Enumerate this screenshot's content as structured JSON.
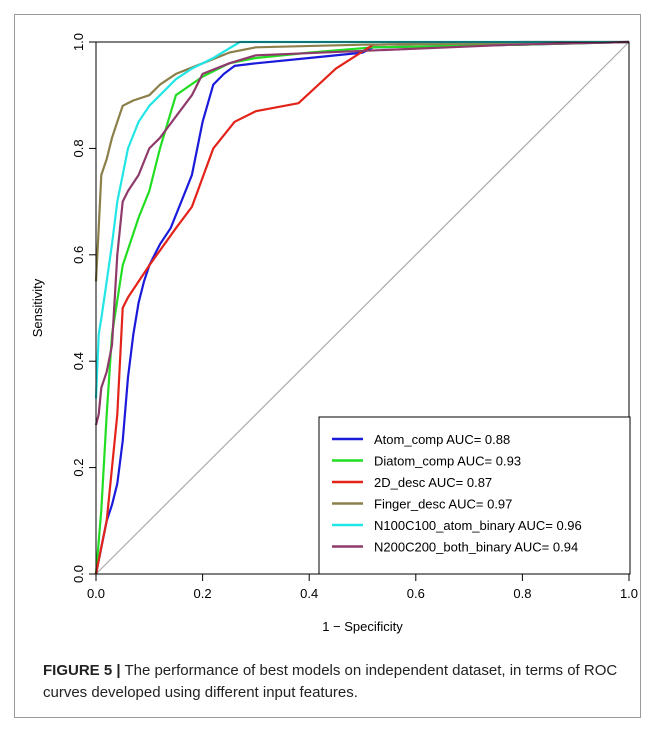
{
  "chart_data": {
    "type": "line",
    "xlabel": "1 − Specificity",
    "ylabel": "Sensitivity",
    "xlim": [
      0,
      1
    ],
    "ylim": [
      0,
      1
    ],
    "x_ticks": [
      "0.0",
      "0.2",
      "0.4",
      "0.6",
      "0.8",
      "1.0"
    ],
    "y_ticks": [
      "0.0",
      "0.2",
      "0.4",
      "0.6",
      "0.8",
      "1.0"
    ],
    "legend_position": "bottom-right",
    "grid": false,
    "reference_line": {
      "x": [
        0,
        1
      ],
      "y": [
        0,
        1
      ],
      "color": "#aaaaaa"
    },
    "series": [
      {
        "name": "Atom_comp AUC= 0.88",
        "color": "#1a1adb",
        "x": [
          0,
          0.01,
          0.02,
          0.03,
          0.04,
          0.05,
          0.06,
          0.07,
          0.08,
          0.09,
          0.1,
          0.11,
          0.12,
          0.14,
          0.16,
          0.18,
          0.2,
          0.22,
          0.24,
          0.26,
          0.3,
          0.4,
          0.5,
          0.52,
          0.8,
          1.0
        ],
        "y": [
          0,
          0.05,
          0.1,
          0.13,
          0.17,
          0.25,
          0.37,
          0.45,
          0.51,
          0.55,
          0.58,
          0.6,
          0.62,
          0.65,
          0.7,
          0.75,
          0.85,
          0.92,
          0.94,
          0.955,
          0.96,
          0.97,
          0.98,
          0.99,
          0.995,
          1.0
        ]
      },
      {
        "name": "Diatom_comp AUC= 0.93",
        "color": "#22dd22",
        "x": [
          0,
          0.01,
          0.02,
          0.03,
          0.05,
          0.08,
          0.1,
          0.12,
          0.15,
          0.2,
          0.25,
          0.3,
          0.4,
          0.52,
          0.8,
          1.0
        ],
        "y": [
          0,
          0.12,
          0.3,
          0.45,
          0.58,
          0.67,
          0.72,
          0.8,
          0.9,
          0.935,
          0.96,
          0.97,
          0.98,
          0.99,
          0.995,
          1.0
        ]
      },
      {
        "name": "2D_desc AUC= 0.87",
        "color": "#e3231a",
        "x": [
          0,
          0.01,
          0.02,
          0.03,
          0.04,
          0.05,
          0.06,
          0.1,
          0.15,
          0.18,
          0.22,
          0.26,
          0.3,
          0.38,
          0.45,
          0.52,
          0.8,
          1.0
        ],
        "y": [
          0,
          0.05,
          0.1,
          0.2,
          0.3,
          0.5,
          0.52,
          0.58,
          0.65,
          0.69,
          0.8,
          0.85,
          0.87,
          0.885,
          0.95,
          0.995,
          1.0,
          1.0
        ]
      },
      {
        "name": "Finger_desc AUC= 0.97",
        "color": "#8b7f4a",
        "x": [
          0,
          0.005,
          0.01,
          0.02,
          0.03,
          0.04,
          0.05,
          0.07,
          0.1,
          0.12,
          0.15,
          0.2,
          0.25,
          0.3,
          0.5,
          1.0
        ],
        "y": [
          0.55,
          0.65,
          0.75,
          0.78,
          0.82,
          0.85,
          0.88,
          0.89,
          0.9,
          0.92,
          0.94,
          0.96,
          0.98,
          0.99,
          0.995,
          1.0
        ]
      },
      {
        "name": "N100C100_atom_binary AUC= 0.96",
        "color": "#22e6e6",
        "x": [
          0,
          0.005,
          0.01,
          0.02,
          0.03,
          0.04,
          0.05,
          0.06,
          0.08,
          0.1,
          0.12,
          0.15,
          0.18,
          0.22,
          0.27,
          0.35,
          1.0
        ],
        "y": [
          0.33,
          0.45,
          0.48,
          0.55,
          0.62,
          0.7,
          0.75,
          0.8,
          0.85,
          0.88,
          0.9,
          0.93,
          0.95,
          0.97,
          1.0,
          1.0,
          1.0
        ]
      },
      {
        "name": "N200C200_both_binary AUC= 0.94",
        "color": "#8e3a6a",
        "x": [
          0,
          0.005,
          0.01,
          0.02,
          0.03,
          0.04,
          0.05,
          0.06,
          0.08,
          0.1,
          0.12,
          0.15,
          0.18,
          0.2,
          0.25,
          0.3,
          0.78,
          1.0
        ],
        "y": [
          0.28,
          0.3,
          0.35,
          0.38,
          0.43,
          0.6,
          0.7,
          0.72,
          0.75,
          0.8,
          0.82,
          0.86,
          0.9,
          0.94,
          0.96,
          0.975,
          0.995,
          1.0
        ]
      }
    ]
  },
  "caption": {
    "label": "FIGURE 5 |",
    "text": " The performance of best models on independent dataset, in terms of ROC curves developed using different input features."
  }
}
